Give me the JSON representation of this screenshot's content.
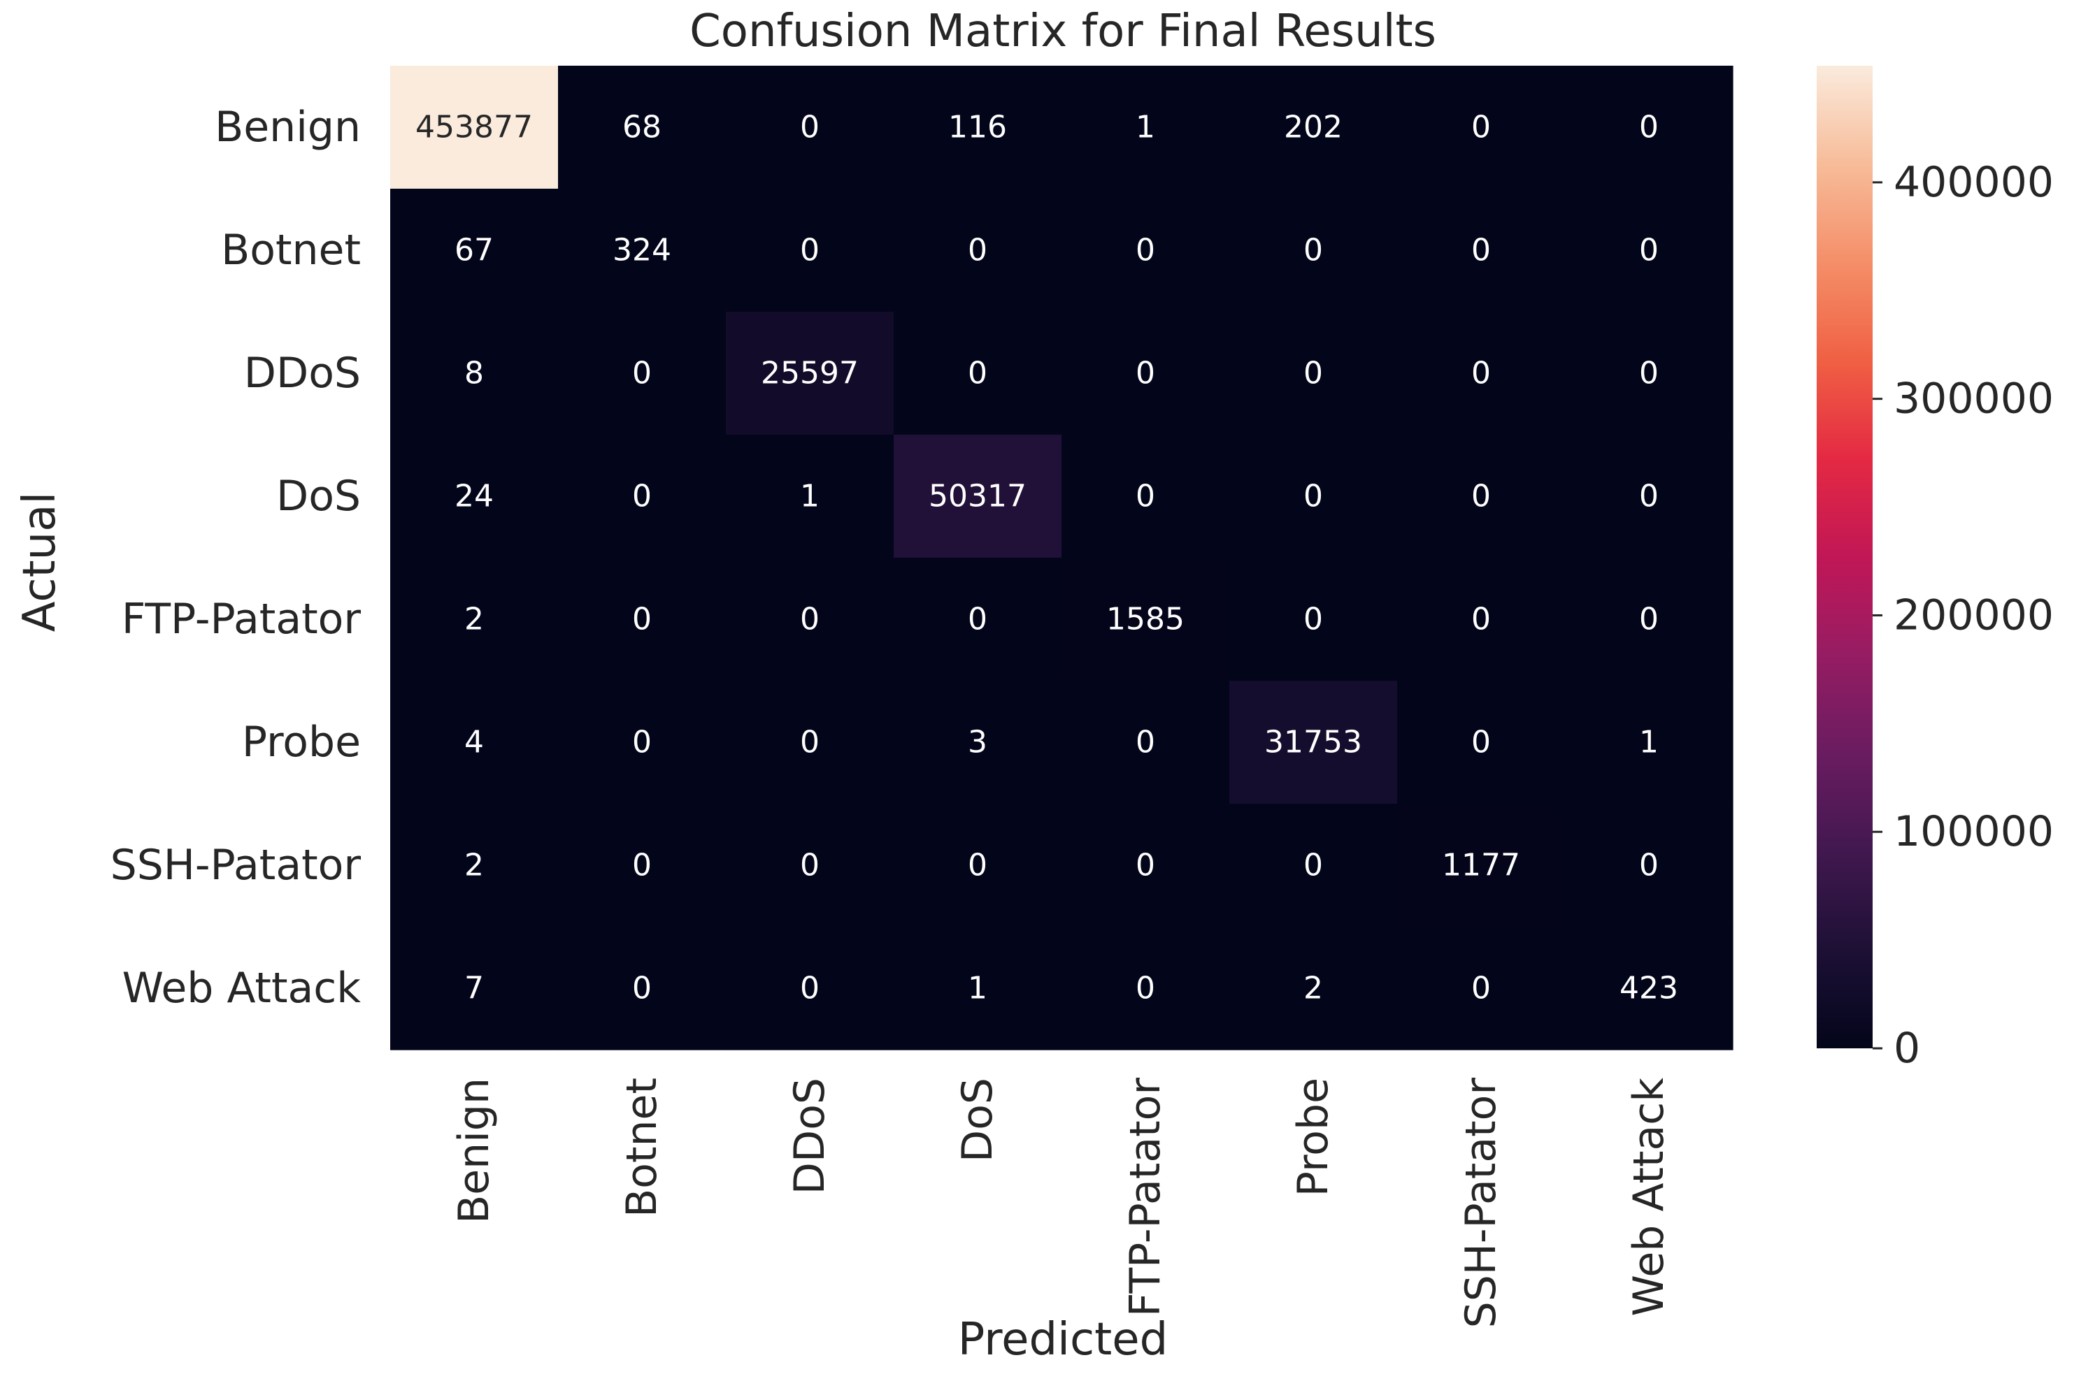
{
  "chart_data": {
    "type": "heatmap",
    "title": "Confusion Matrix for Final Results",
    "xlabel": "Predicted",
    "ylabel": "Actual",
    "x_categories": [
      "Benign",
      "Botnet",
      "DDoS",
      "DoS",
      "FTP-Patator",
      "Probe",
      "SSH-Patator",
      "Web Attack"
    ],
    "y_categories": [
      "Benign",
      "Botnet",
      "DDoS",
      "DoS",
      "FTP-Patator",
      "Probe",
      "SSH-Patator",
      "Web Attack"
    ],
    "values": [
      [
        453877,
        68,
        0,
        116,
        1,
        202,
        0,
        0
      ],
      [
        67,
        324,
        0,
        0,
        0,
        0,
        0,
        0
      ],
      [
        8,
        0,
        25597,
        0,
        0,
        0,
        0,
        0
      ],
      [
        24,
        0,
        1,
        50317,
        0,
        0,
        0,
        0
      ],
      [
        2,
        0,
        0,
        0,
        1585,
        0,
        0,
        0
      ],
      [
        4,
        0,
        0,
        3,
        0,
        31753,
        0,
        1
      ],
      [
        2,
        0,
        0,
        0,
        0,
        0,
        1177,
        0
      ],
      [
        7,
        0,
        0,
        1,
        0,
        2,
        0,
        423
      ]
    ],
    "colorbar": {
      "colormap": "rocket",
      "range": [
        0,
        453877
      ],
      "ticks": [
        0,
        100000,
        200000,
        300000,
        400000
      ],
      "tick_labels": [
        "0",
        "100000",
        "200000",
        "300000",
        "400000"
      ]
    },
    "colors": {
      "low": "#03051a",
      "high": "#faebdd",
      "light_text": "#ffffff",
      "dark_text": "#262626",
      "axis_text": "#262626"
    },
    "grid": false
  }
}
